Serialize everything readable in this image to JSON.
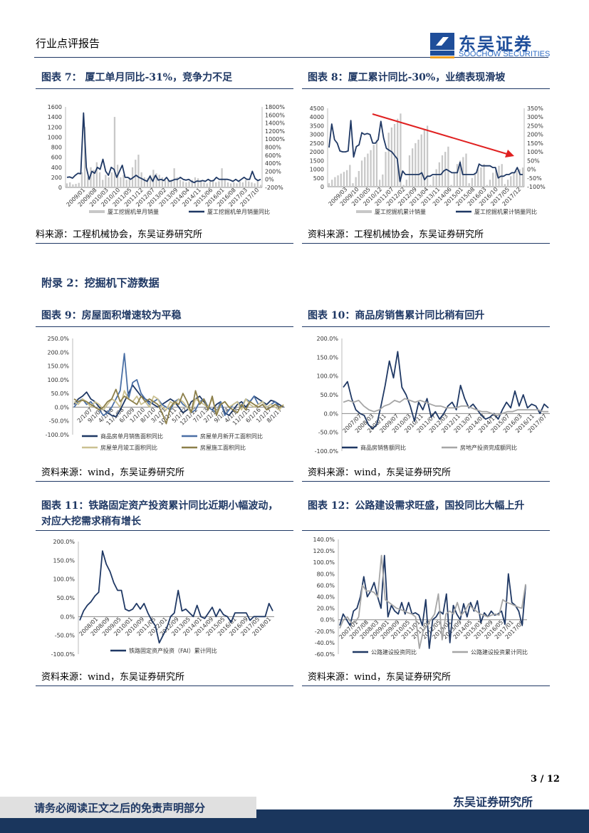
{
  "header": {
    "report_type": "行业点评报告",
    "logo_cn": "东吴证券",
    "logo_en": "SOOCHOW SECURITIES",
    "logo_mark": "SCS"
  },
  "appendix_title": "附录 2：挖掘机下游数据",
  "figures": [
    {
      "title": "图表 7：  厦工单月同比-31%，竞争力不足",
      "source": "料来源：工程机械协会，东吴证券研究所"
    },
    {
      "title": "图表 8：厦工累计同比-30%，业绩表现滑坡",
      "source": "资料来源：工程机械协会，东吴证券研究所"
    },
    {
      "title": "图表 9：房屋面积增速较为平稳",
      "source": "资料来源：wind，东吴证券研究所"
    },
    {
      "title": "图表 10：商品房销售累计同比稍有回升",
      "source": "资料来源：wind，东吴证券研究所"
    },
    {
      "title": "图表 11：铁路固定资产投资累计同比近期小幅波动，",
      "title2": "对应大挖需求稍有增长",
      "source": "资料来源：wind，东吴证券研究所"
    },
    {
      "title": "图表 12：公路建设需求旺盛，国投同比大幅上升",
      "source": "资料来源：wind，东吴证券研究所"
    }
  ],
  "footer": {
    "page": "3 / 12",
    "institute": "东吴证券研究所",
    "disclaimer": "请务必阅读正文之后的免责声明部分"
  },
  "colors": {
    "navy": "#1f3864",
    "gray": "#bfbfbf",
    "blue": "#4a6fa5",
    "khaki": "#cbc191",
    "olive": "#8c7f4a",
    "arrow": "#e02020"
  },
  "chart_data": [
    {
      "type": "bar+line",
      "ylim": [
        0,
        1600
      ],
      "y2lim": [
        -200,
        1800
      ],
      "yticks": [
        "0",
        "200",
        "400",
        "600",
        "800",
        "1000",
        "1200",
        "1400",
        "1600"
      ],
      "y2ticks": [
        "-200%",
        "0%",
        "200%",
        "400%",
        "600%",
        "800%",
        "1000%",
        "1200%",
        "1400%",
        "1600%",
        "1800%"
      ],
      "xticks": [
        "2009/01",
        "2009/08",
        "2010/03",
        "2010/10",
        "2011/05",
        "2011/12",
        "2012/07",
        "2013/02",
        "2013/09",
        "2014/04",
        "2014/11",
        "2015/06",
        "2016/01",
        "2016/08",
        "2017/03",
        "2017/10"
      ],
      "series": [
        {
          "name": "厦工挖掘机单月销量",
          "kind": "bar",
          "axis": "left",
          "color": "#c8c8c8",
          "values": [
            80,
            100,
            60,
            70,
            90,
            300,
            1200,
            200,
            400,
            350,
            500,
            300,
            150,
            250,
            200,
            300,
            1400,
            450,
            200,
            250,
            150,
            200,
            400,
            550,
            650,
            300,
            200,
            180,
            250,
            350,
            280,
            250,
            200,
            150,
            150,
            150,
            380,
            200,
            150,
            120,
            100,
            120,
            150,
            200,
            180,
            120,
            100,
            80,
            120,
            150,
            100,
            120,
            380,
            150,
            100,
            80,
            100,
            80,
            120,
            100,
            150,
            120,
            100,
            80,
            150,
            50
          ]
        },
        {
          "name": "厦工挖掘机单月销量同比",
          "kind": "line",
          "axis": "right",
          "color": "#1f3864",
          "values": [
            50,
            60,
            30,
            100,
            150,
            140,
            1650,
            300,
            0,
            200,
            150,
            300,
            250,
            500,
            200,
            100,
            300,
            250,
            50,
            200,
            350,
            50,
            50,
            0,
            50,
            100,
            50,
            20,
            -20,
            -50,
            80,
            -50,
            100,
            -20,
            0,
            -30,
            50,
            -50,
            -30,
            0,
            0,
            50,
            0,
            -20,
            0,
            -50,
            -80,
            -40,
            -50,
            -30,
            -50,
            0,
            -40,
            -30,
            50,
            0,
            0,
            0,
            0,
            -20,
            -50,
            0,
            -50,
            0,
            50,
            0,
            0,
            200,
            20,
            -30,
            0
          ]
        }
      ]
    },
    {
      "type": "bar+line",
      "ylim": [
        0,
        4500
      ],
      "y2lim": [
        -100,
        350
      ],
      "yticks": [
        "0",
        "500",
        "1000",
        "1500",
        "2000",
        "2500",
        "3000",
        "3500",
        "4000",
        "4500"
      ],
      "y2ticks": [
        "-100%",
        "-50%",
        "0%",
        "50%",
        "100%",
        "150%",
        "200%",
        "250%",
        "300%",
        "350%"
      ],
      "xticks": [
        "2009/03",
        "2009/10",
        "2010/05",
        "2010/12",
        "2011/07",
        "2012/02",
        "2012/09",
        "2013/04",
        "2013/11",
        "2014/06",
        "2015/01",
        "2015/08",
        "2016/03",
        "2016/10",
        "2017/05",
        "2017/12"
      ],
      "annotation": "downward trend arrow",
      "series": [
        {
          "name": "厦工挖掘机累计销量",
          "kind": "bar",
          "axis": "left",
          "color": "#c8c8c8",
          "values": [
            200,
            400,
            550,
            650,
            750,
            850,
            950,
            1250,
            200,
            550,
            900,
            1500,
            1700,
            1900,
            2100,
            2400,
            2700,
            400,
            700,
            2000,
            3100,
            3400,
            3600,
            3900,
            4200,
            100,
            400,
            1800,
            2200,
            2500,
            2700,
            3000,
            3300,
            3500,
            100,
            600,
            1000,
            1400,
            1800,
            2000,
            2300,
            100,
            800,
            1300,
            1500,
            1700,
            1900,
            200,
            500,
            800,
            1000,
            1100,
            1300,
            100,
            400,
            800,
            1000,
            1200,
            1300,
            150,
            400,
            600,
            800,
            900,
            1000,
            1100
          ]
        },
        {
          "name": "厦工挖掘机累计销量同比",
          "kind": "line",
          "axis": "right",
          "color": "#1f3864",
          "values": [
            125,
            260,
            170,
            150,
            105,
            100,
            100,
            105,
            280,
            70,
            130,
            140,
            210,
            200,
            205,
            200,
            150,
            150,
            170,
            275,
            180,
            120,
            110,
            100,
            80,
            60,
            -70,
            -10,
            -30,
            -30,
            -30,
            -30,
            -30,
            -30,
            -20,
            -60,
            -40,
            -40,
            -30,
            -30,
            -30,
            -30,
            -10,
            0,
            -10,
            -20,
            -20,
            -20,
            40,
            -30,
            -30,
            -30,
            -30,
            -30,
            -20,
            30,
            20,
            20,
            20,
            20,
            10,
            10,
            -50,
            -40,
            -40,
            -30,
            -30,
            -20,
            -20,
            10,
            -30,
            -30
          ]
        }
      ]
    },
    {
      "type": "line",
      "ylim": [
        -100,
        250
      ],
      "yticks": [
        "-100.0%",
        "-50.0%",
        "0.0%",
        "50.0%",
        "100.0%",
        "150.0%",
        "200.0%",
        "250.0%"
      ],
      "xticks": [
        "2/1/07",
        "9/1/07",
        "4/1/08",
        "11/1/08",
        "6/1/09",
        "1/1/10",
        "8/1/10",
        "3/1/11",
        "10/1/11",
        "5/1/12",
        "12/1/12",
        "7/1/13",
        "2/1/14",
        "9/1/14",
        "4/1/15",
        "11/1/15",
        "6/1/16",
        "1/1/17",
        "8/1/17"
      ],
      "series": [
        {
          "name": "商品房单月销售面积同比",
          "color": "#1f3864",
          "values": [
            10,
            30,
            40,
            55,
            30,
            20,
            0,
            -10,
            -20,
            -30,
            -35,
            -10,
            20,
            50,
            80,
            60,
            40,
            30,
            20,
            10,
            0,
            10,
            20,
            30,
            20,
            0,
            -20,
            -10,
            20,
            30,
            40,
            20,
            0,
            -10,
            10,
            20,
            -20,
            -30,
            -10,
            10,
            20,
            0,
            20,
            40,
            30,
            20,
            10,
            25,
            20,
            10,
            0
          ]
        },
        {
          "name": "房屋单月新开工面积同比",
          "color": "#4a6fa5",
          "values": [
            0,
            20,
            30,
            10,
            20,
            0,
            -10,
            -30,
            -20,
            0,
            30,
            60,
            195,
            30,
            90,
            100,
            50,
            30,
            10,
            20,
            30,
            10,
            0,
            -10,
            20,
            30,
            10,
            0,
            -20,
            -10,
            20,
            30,
            0,
            -10,
            -20,
            20,
            -30,
            -10,
            10,
            20,
            0,
            30,
            20,
            40,
            10,
            20,
            0,
            10,
            20,
            0,
            5
          ]
        },
        {
          "name": "房屋单月竣工面积同比",
          "color": "#cbc191",
          "values": [
            20,
            10,
            30,
            20,
            0,
            20,
            10,
            -10,
            10,
            30,
            20,
            0,
            60,
            30,
            20,
            40,
            10,
            20,
            0,
            40,
            30,
            0,
            -10,
            20,
            10,
            30,
            20,
            0,
            -20,
            30,
            20,
            10,
            0,
            30,
            -20,
            10,
            20,
            0,
            10,
            20,
            -10,
            30,
            10,
            0,
            10,
            20,
            0,
            10,
            0,
            -10,
            10
          ]
        },
        {
          "name": "房屋施工面积同比",
          "color": "#8c7f4a",
          "values": [
            30,
            20,
            25,
            20,
            10,
            0,
            -10,
            0,
            20,
            30,
            65,
            20,
            40,
            30,
            20,
            10,
            40,
            20,
            30,
            20,
            10,
            -20,
            -60,
            0,
            20,
            10,
            50,
            20,
            -20,
            60,
            10,
            30,
            -10,
            40,
            -30,
            10,
            20,
            0,
            -10,
            -20,
            10,
            -10,
            20,
            10,
            0,
            10,
            -10,
            0,
            10,
            0,
            5
          ]
        }
      ]
    },
    {
      "type": "line",
      "ylim": [
        -100,
        200
      ],
      "yticks": [
        "-100.0%",
        "-50.0%",
        "0.0%",
        "50.0%",
        "100.0%",
        "150.0%",
        "200.0%"
      ],
      "xticks": [
        "2007/07",
        "2008/03",
        "2008/11",
        "2009/07",
        "2010/03",
        "2010/11",
        "2011/07",
        "2012/03",
        "2012/11",
        "2013/07",
        "2014/03",
        "2014/11",
        "2015/07",
        "2016/03",
        "2016/11",
        "2017/07"
      ],
      "series": [
        {
          "name": "商品房销售额同比",
          "color": "#1f3864",
          "values": [
            70,
            85,
            40,
            10,
            0,
            -5,
            -30,
            -40,
            -30,
            20,
            75,
            140,
            95,
            165,
            70,
            50,
            20,
            -20,
            30,
            10,
            40,
            -10,
            5,
            -15,
            0,
            20,
            30,
            10,
            75,
            40,
            15,
            25,
            10,
            -5,
            -15,
            -10,
            0,
            -15,
            10,
            30,
            15,
            60,
            20,
            50,
            15,
            25,
            20,
            0,
            25,
            15
          ]
        },
        {
          "name": "房地产投资完成额同比",
          "color": "#a6a6a6",
          "values": [
            30,
            35,
            30,
            35,
            20,
            10,
            5,
            10,
            20,
            25,
            35,
            30,
            40,
            35,
            30,
            35,
            30,
            25,
            20,
            20,
            15,
            15,
            15,
            20,
            20,
            15,
            10,
            5,
            5,
            0,
            -5,
            0,
            5,
            5,
            10,
            10,
            10,
            10,
            10,
            5,
            5
          ]
        }
      ]
    },
    {
      "type": "line",
      "ylim": [
        -100,
        200
      ],
      "yticks": [
        "-100.0%",
        "-50.0%",
        "0.0%",
        "50.0%",
        "100.0%",
        "150.0%",
        "200.0%"
      ],
      "xticks": [
        "2008/01",
        "2008/09",
        "2009/05",
        "2010/01",
        "2010/09",
        "2011/05",
        "2012/01",
        "2012/09",
        "2013/05",
        "2014/01",
        "2014/09",
        "2015/05",
        "2016/01",
        "2016/09",
        "2017/05",
        "2018/01"
      ],
      "series": [
        {
          "name": "铁路固定资产投资（FAI）累计同比",
          "color": "#1f3864",
          "values": [
            -10,
            15,
            30,
            40,
            55,
            65,
            175,
            140,
            120,
            90,
            70,
            70,
            20,
            15,
            20,
            35,
            20,
            35,
            10,
            -10,
            -25,
            -70,
            -50,
            -30,
            0,
            10,
            70,
            15,
            20,
            10,
            0,
            30,
            0,
            -5,
            10,
            25,
            0,
            20,
            5,
            0,
            -15,
            10,
            10,
            10,
            10,
            -10,
            0,
            0,
            0,
            0,
            35,
            15
          ]
        }
      ]
    },
    {
      "type": "line",
      "ylim": [
        -60,
        140
      ],
      "yticks": [
        "-60.0%",
        "-40.0%",
        "-20.0%",
        "0.0%",
        "20.0%",
        "40.0%",
        "60.0%",
        "80.0%",
        "100.0%",
        "120.0%",
        "140.0%"
      ],
      "xticks": [
        "2007/01",
        "2007/08",
        "2008/03",
        "2009/01",
        "2009/09",
        "2010/05",
        "2011/01",
        "2011/09",
        "2012/05",
        "2013/01",
        "2013/09",
        "2014/05",
        "2015/01",
        "2015/09",
        "2016/05",
        "2017/01",
        "2017/09"
      ],
      "series": [
        {
          "name": "公路建设投资同比",
          "color": "#1f3864",
          "values": [
            -10,
            10,
            0,
            -10,
            15,
            20,
            40,
            75,
            40,
            50,
            65,
            40,
            20,
            112,
            5,
            25,
            15,
            10,
            30,
            10,
            30,
            10,
            12,
            8,
            -10,
            35,
            -50,
            0,
            5,
            15,
            10,
            45,
            -40,
            25,
            10,
            0,
            28,
            5,
            30,
            15,
            33,
            -5,
            12,
            5,
            15,
            8,
            10,
            15,
            -8,
            80,
            30,
            25,
            15,
            -10,
            60
          ]
        },
        {
          "name": "公路建设投资累计同比",
          "color": "#a6a6a6",
          "values": [
            -15,
            0,
            5,
            -5,
            -5,
            5,
            60,
            50,
            50,
            48,
            40,
            112,
            35,
            30,
            25,
            20,
            18,
            15,
            12,
            10,
            5,
            -50,
            -20,
            -10,
            0,
            10,
            45,
            -35,
            10,
            15,
            10,
            30,
            8,
            15,
            28,
            20,
            15,
            10,
            8,
            5,
            8,
            10,
            8,
            35,
            30,
            28,
            25,
            22,
            20,
            62
          ]
        }
      ]
    }
  ]
}
